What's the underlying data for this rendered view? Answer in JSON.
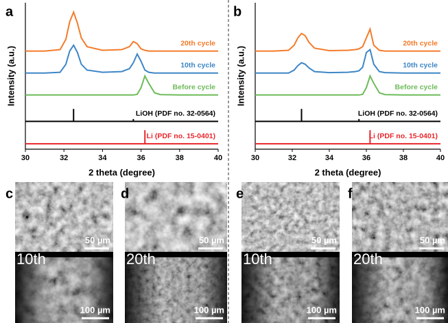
{
  "chart_data": [
    {
      "type": "line",
      "panel_label": "a",
      "xlabel": "2 theta (degree)",
      "ylabel": "Intensity (a.u.)",
      "xlim": [
        30,
        40
      ],
      "xticks": [
        30,
        32,
        34,
        36,
        38,
        40
      ],
      "ylim": [
        0,
        100
      ],
      "x": [
        30,
        31,
        31.8,
        32.1,
        32.3,
        32.5,
        32.7,
        32.9,
        33.2,
        34,
        35,
        35.4,
        35.6,
        35.8,
        36,
        36.2,
        36.4,
        36.7,
        37,
        38,
        39,
        40
      ],
      "series": [
        {
          "name": "20th cycle",
          "color": "#f47b2a",
          "values": [
            67,
            67,
            68,
            75,
            87,
            93.6,
            86,
            76,
            70,
            67.5,
            68,
            70,
            73.5,
            72,
            68.5,
            67.5,
            67,
            67,
            67,
            67,
            67,
            67
          ]
        },
        {
          "name": "10th cycle",
          "color": "#3d86c6",
          "values": [
            52,
            52,
            52.5,
            58,
            67,
            71,
            66,
            58,
            54,
            52.5,
            53,
            55,
            59,
            65,
            60,
            54,
            52.5,
            52,
            52,
            52,
            52,
            52
          ]
        },
        {
          "name": "Before cycle",
          "color": "#6dbb5a",
          "values": [
            37,
            37,
            37,
            37,
            37,
            37,
            37,
            37,
            37,
            37,
            37,
            37,
            37,
            37.5,
            42,
            50,
            45,
            38.5,
            37.3,
            37,
            37,
            37
          ]
        }
      ],
      "references": [
        {
          "name": "LiOH (PDF no. 32-0564)",
          "color": "#000000",
          "baseline": 19,
          "x": [
            32.5,
            35.6
          ],
          "values": [
            27.5,
            20.6
          ]
        },
        {
          "name": "Li (PDF no. 15-0401)",
          "color": "#e8262b",
          "baseline": 3.7,
          "x": [
            36.2
          ],
          "values": [
            13
          ]
        }
      ]
    },
    {
      "type": "line",
      "panel_label": "b",
      "xlabel": "2 theta (degree)",
      "ylabel": "Intensity (a.u.)",
      "xlim": [
        30,
        40
      ],
      "xticks": [
        30,
        32,
        34,
        36,
        38,
        40
      ],
      "ylim": [
        0,
        100
      ],
      "x": [
        30,
        31,
        31.8,
        32.1,
        32.3,
        32.5,
        32.7,
        32.9,
        33.2,
        34,
        35,
        35.4,
        35.6,
        35.8,
        36,
        36.2,
        36.4,
        36.7,
        37,
        38,
        39,
        40
      ],
      "series": [
        {
          "name": "20th cycle",
          "color": "#f47b2a",
          "values": [
            67,
            67,
            67.5,
            71,
            76,
            79,
            77.5,
            73,
            69,
            67.3,
            67.5,
            68,
            68.5,
            70,
            76,
            82,
            71,
            67.5,
            67,
            67,
            67,
            67
          ]
        },
        {
          "name": "10th cycle",
          "color": "#3d86c6",
          "values": [
            52,
            52,
            52,
            54,
            57,
            59,
            58,
            55.5,
            53,
            52.3,
            52.5,
            53,
            53.5,
            56,
            66,
            68,
            58,
            53,
            52.3,
            52,
            52,
            52
          ]
        },
        {
          "name": "Before cycle",
          "color": "#6dbb5a",
          "values": [
            37,
            37,
            37,
            37,
            37,
            37,
            37,
            37,
            37,
            37,
            37,
            37,
            37,
            37.5,
            42,
            50,
            45,
            38.5,
            37.3,
            37,
            37,
            37
          ]
        }
      ],
      "references": [
        {
          "name": "LiOH (PDF no. 32-0564)",
          "color": "#000000",
          "baseline": 19,
          "x": [
            32.5,
            35.6
          ],
          "values": [
            27.5,
            20.6
          ]
        },
        {
          "name": "Li (PDF no. 15-0401)",
          "color": "#e8262b",
          "baseline": 3.7,
          "x": [
            36.2
          ],
          "values": [
            13
          ]
        }
      ]
    }
  ],
  "sem_panels": [
    {
      "label": "c",
      "cycle": "10th",
      "top_scale": "50 µm",
      "bottom_scale": "100 µm"
    },
    {
      "label": "d",
      "cycle": "20th",
      "top_scale": "50 µm",
      "bottom_scale": "100 µm"
    },
    {
      "label": "e",
      "cycle": "10th",
      "top_scale": "50 µm",
      "bottom_scale": "100 µm"
    },
    {
      "label": "f",
      "cycle": "20th",
      "top_scale": "50 µm",
      "bottom_scale": "100 µm"
    }
  ]
}
